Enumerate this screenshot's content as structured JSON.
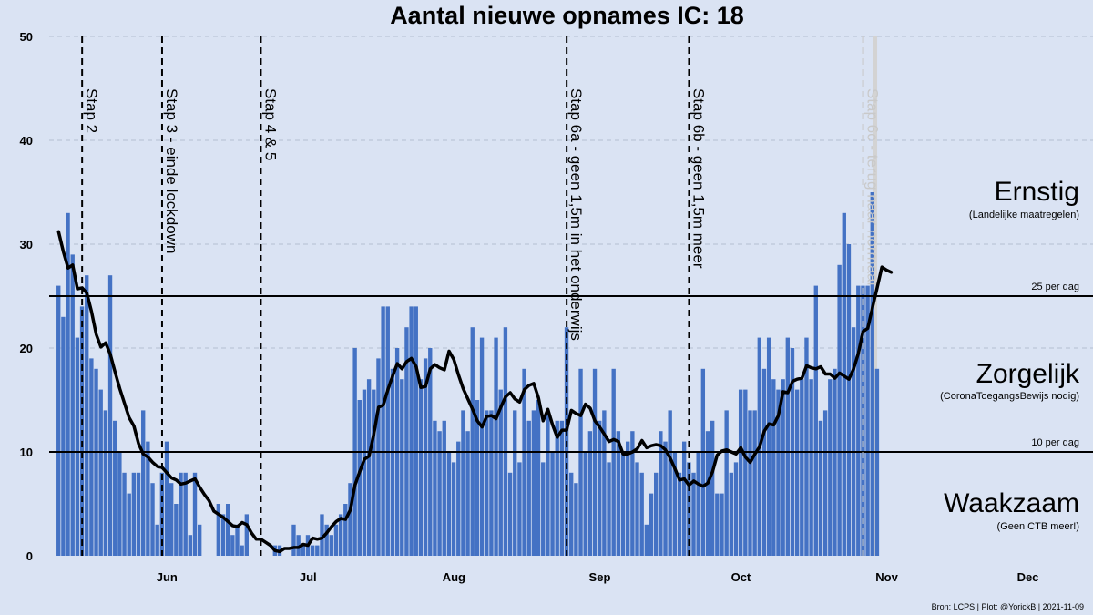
{
  "title": "Aantal nieuwe opnames IC:  18",
  "zones": {
    "severe": {
      "title": "Ernstig",
      "subtitle": "(Landelijke maatregelen)"
    },
    "worried": {
      "title": "Zorgelijk",
      "subtitle": "(CoronaToegangsBewijs nodig)"
    },
    "watchful": {
      "title": "Waakzaam",
      "subtitle": "(Geen CTB meer!)"
    }
  },
  "thresholds": {
    "upper": {
      "label": "25 per dag",
      "value": 25
    },
    "lower": {
      "label": "10 per dag",
      "value": 10
    }
  },
  "source": "Bron: LCPS | Plot: @YorickB |  2021-11-09",
  "colors": {
    "background": "#dae3f3",
    "bar": "#4472c4",
    "line": "#000000",
    "event_line": "#000000",
    "event_line_faded": "#c9c9c9",
    "highlight": "#d3d3d3"
  },
  "chart_data": {
    "type": "bar",
    "x_start": "2021-05-14",
    "x_axis": {
      "min": "2021-05-12",
      "max": "2021-12-31",
      "ticks": [
        "Jun",
        "Jul",
        "Aug",
        "Sep",
        "Oct",
        "Nov",
        "Dec"
      ]
    },
    "y_axis": {
      "min": 0,
      "max": 50,
      "ticks": [
        0,
        10,
        20,
        30,
        40,
        50
      ]
    },
    "grid": "horizontal dashed",
    "values": [
      26,
      23,
      33,
      29,
      21,
      24,
      27,
      19,
      18,
      16,
      14,
      27,
      13,
      10,
      8,
      6,
      8,
      8,
      14,
      11,
      7,
      3,
      8,
      11,
      7,
      5,
      8,
      8,
      2,
      8,
      3,
      0,
      0,
      0,
      5,
      4,
      5,
      2,
      3,
      1,
      4,
      0,
      0,
      0,
      0,
      0,
      1,
      1,
      0,
      0,
      3,
      2,
      1,
      2,
      1,
      1,
      4,
      3,
      2,
      3,
      4,
      5,
      7,
      20,
      15,
      16,
      17,
      16,
      19,
      24,
      24,
      18,
      20,
      17,
      22,
      24,
      24,
      17,
      19,
      20,
      13,
      12,
      13,
      10,
      9,
      11,
      14,
      12,
      22,
      15,
      21,
      14,
      14,
      21,
      16,
      22,
      8,
      14,
      9,
      18,
      13,
      14,
      15,
      9,
      14,
      10,
      13,
      13,
      22,
      8,
      7,
      18,
      10,
      12,
      18,
      13,
      14,
      9,
      18,
      12,
      10,
      11,
      12,
      9,
      8,
      3,
      6,
      8,
      12,
      11,
      14,
      10,
      8,
      11,
      9,
      8,
      10,
      18,
      12,
      13,
      6,
      6,
      14,
      8,
      9,
      16,
      16,
      14,
      14,
      21,
      18,
      21,
      17,
      16,
      17,
      21,
      20,
      16,
      17,
      21,
      17,
      26,
      13,
      14,
      17,
      18,
      28,
      33,
      30,
      22,
      26,
      26,
      26,
      35,
      18
    ],
    "moving_average": [
      31.2,
      29.3,
      27.7,
      28.0,
      25.7,
      25.8,
      25.3,
      23.5,
      21.3,
      20.1,
      20.5,
      19.4,
      17.7,
      16.1,
      14.7,
      13.3,
      12.5,
      10.8,
      9.8,
      9.5,
      9.0,
      8.6,
      8.5,
      8.0,
      7.5,
      7.3,
      6.9,
      7.0,
      7.2,
      7.4,
      6.6,
      5.9,
      5.3,
      4.3,
      4.0,
      3.7,
      3.3,
      2.9,
      2.8,
      3.2,
      3.0,
      2.2,
      1.6,
      1.6,
      1.3,
      1.0,
      0.5,
      0.4,
      0.7,
      0.7,
      0.8,
      0.8,
      1.1,
      1.0,
      1.7,
      1.6,
      1.7,
      2.2,
      2.8,
      3.3,
      3.6,
      3.5,
      4.4,
      6.8,
      8.1,
      9.3,
      9.6,
      11.7,
      14.3,
      14.5,
      16.0,
      17.3,
      18.5,
      18.0,
      18.7,
      19.0,
      18.2,
      16.2,
      16.3,
      18.0,
      18.4,
      18.1,
      17.9,
      19.7,
      18.9,
      17.4,
      16.1,
      15.1,
      14.1,
      13.0,
      12.4,
      13.4,
      13.5,
      13.2,
      14.3,
      15.3,
      15.7,
      15.1,
      14.8,
      16.0,
      16.4,
      16.6,
      15.2,
      13.0,
      14.1,
      12.6,
      11.4,
      12.1,
      12.1,
      14.0,
      13.7,
      13.5,
      14.6,
      14.2,
      13.0,
      12.4,
      11.7,
      11.0,
      11.2,
      11.0,
      9.8,
      9.8,
      10.0,
      10.3,
      11.1,
      10.4,
      10.6,
      10.7,
      10.6,
      10.2,
      9.4,
      8.4,
      7.3,
      7.4,
      6.8,
      7.2,
      6.9,
      6.7,
      7.0,
      8.1,
      9.7,
      10.1,
      10.2,
      10.0,
      9.8,
      10.4,
      9.5,
      9.0,
      9.8,
      10.5,
      12.0,
      12.7,
      12.6,
      13.5,
      15.8,
      15.7,
      16.8,
      17.0,
      17.1,
      18.3,
      18.1,
      18.0,
      18.2,
      17.5,
      17.5,
      17.1,
      17.6,
      17.3,
      17.0,
      18.0,
      19.5,
      21.6,
      21.9,
      23.9,
      25.8,
      27.8,
      27.5,
      27.3
    ],
    "events": [
      {
        "label": "Stap 2",
        "date": "2021-05-19"
      },
      {
        "label": "Stap 3 - einde lockdown",
        "date": "2021-06-05"
      },
      {
        "label": "Stap 4 & 5",
        "date": "2021-06-26"
      },
      {
        "label": "Stap 6a - geen 1,5m in het onderwijs",
        "date": "2021-08-30"
      },
      {
        "label": "Stap 6b - geen 1,5m meer",
        "date": "2021-09-25"
      },
      {
        "label": "Stap 6c - terug naar normaal",
        "date": "2021-11-01",
        "faded": true
      }
    ]
  }
}
